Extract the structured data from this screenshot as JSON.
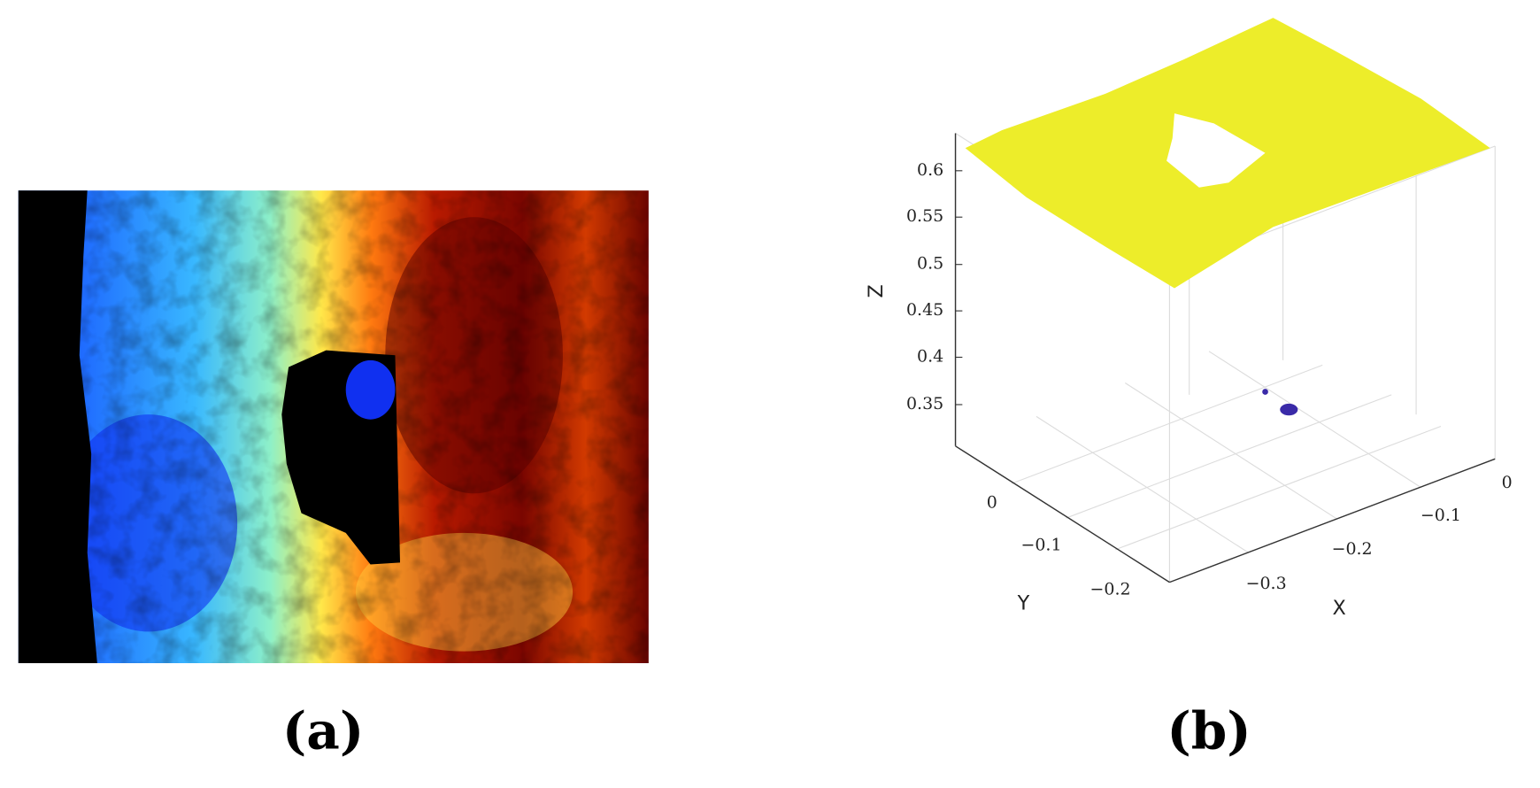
{
  "panels": [
    {
      "label": "(a)"
    },
    {
      "label": "(b)",
      "axes": {
        "z_label": "Z",
        "y_label": "Y",
        "x_label": "X",
        "z_ticks": [
          "0.6",
          "0.55",
          "0.5",
          "0.45",
          "0.4",
          "0.35"
        ],
        "y_ticks": [
          "0",
          "−0.1",
          "−0.2"
        ],
        "x_ticks": [
          "−0.3",
          "−0.2",
          "−0.1",
          "0"
        ]
      }
    }
  ]
}
